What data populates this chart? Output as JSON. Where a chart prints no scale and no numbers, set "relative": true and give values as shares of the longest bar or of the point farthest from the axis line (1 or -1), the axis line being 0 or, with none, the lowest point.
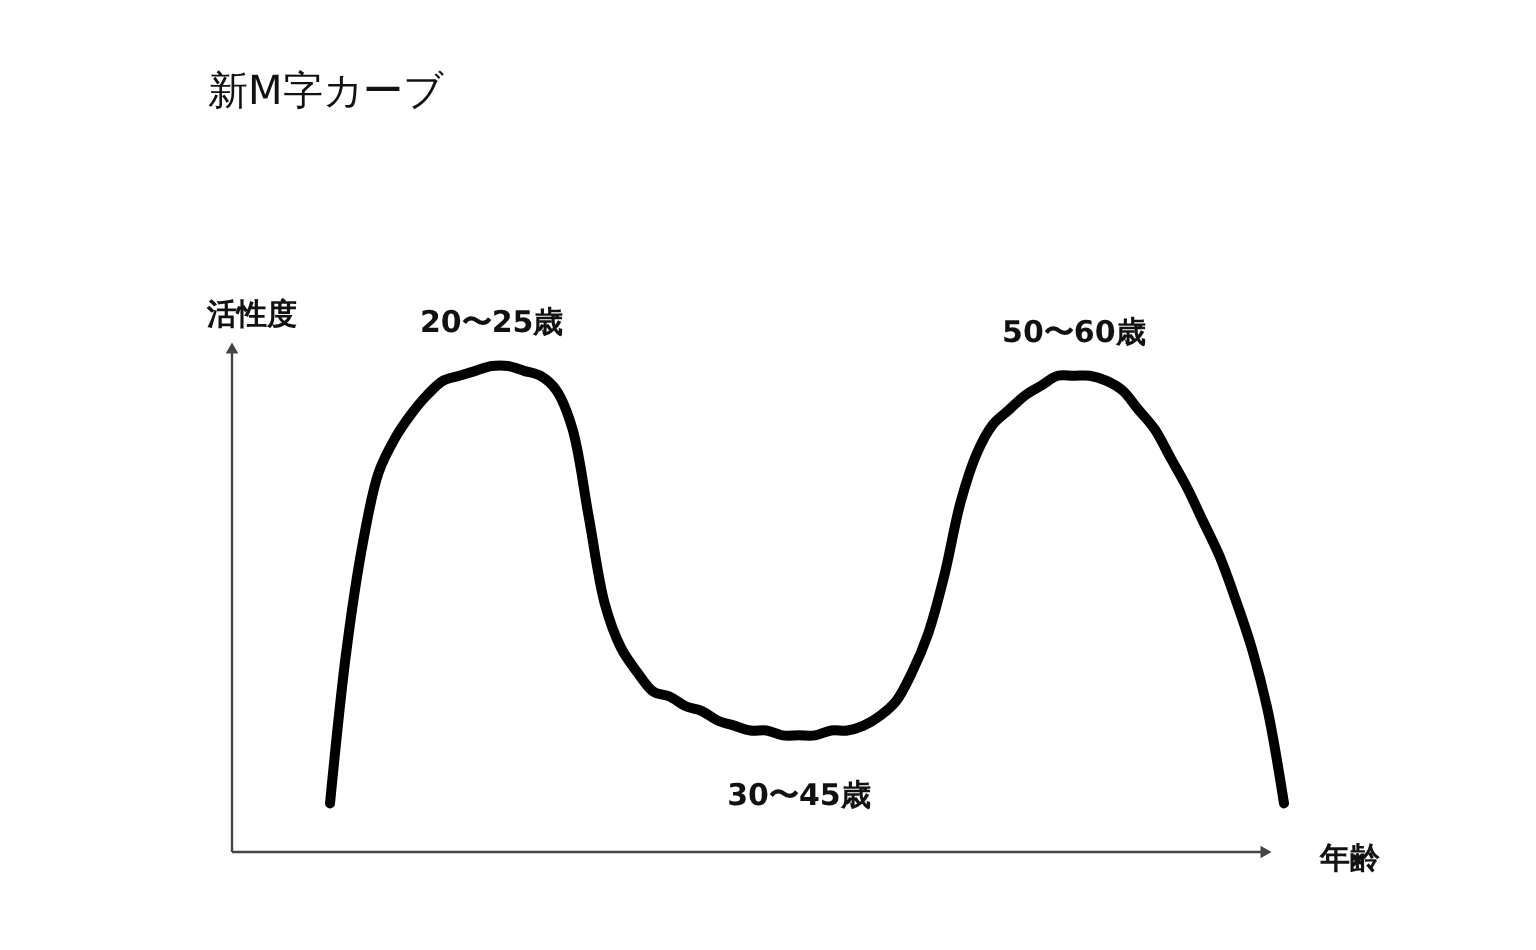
{
  "chart_data": {
    "type": "line",
    "title": "新M字カーブ",
    "xlabel": "年齢",
    "ylabel": "活性度",
    "relative": true,
    "categories": [
      null,
      null,
      null,
      null,
      null,
      null,
      null,
      null,
      null,
      null,
      null,
      null,
      null,
      null,
      null,
      null,
      null,
      null,
      null,
      null,
      null,
      null,
      null,
      null,
      null,
      null,
      null,
      null,
      null,
      null,
      null,
      null,
      null,
      null,
      null,
      null,
      null,
      null,
      null,
      null,
      null,
      null,
      null,
      null,
      null,
      null,
      null,
      null,
      null,
      null,
      null,
      null,
      null,
      null,
      null,
      null,
      null,
      null,
      null,
      null
    ],
    "series": [
      {
        "color": "#000000",
        "values": [
          0.1,
          0.41,
          0.63,
          0.78,
          0.85,
          0.9,
          0.94,
          0.97,
          0.98,
          0.99,
          1.0,
          1.0,
          0.99,
          0.98,
          0.95,
          0.87,
          0.69,
          0.51,
          0.42,
          0.37,
          0.33,
          0.32,
          0.3,
          0.29,
          0.27,
          0.26,
          0.25,
          0.25,
          0.24,
          0.24,
          0.24,
          0.25,
          0.25,
          0.26,
          0.28,
          0.31,
          0.37,
          0.45,
          0.57,
          0.72,
          0.82,
          0.88,
          0.91,
          0.94,
          0.96,
          0.98,
          0.98,
          0.98,
          0.97,
          0.95,
          0.91,
          0.87,
          0.81,
          0.75,
          0.68,
          0.61,
          0.52,
          0.42,
          0.29,
          0.1
        ]
      }
    ],
    "annotations": [
      "20〜25歳",
      "30〜45歳",
      "50〜60歳"
    ]
  }
}
